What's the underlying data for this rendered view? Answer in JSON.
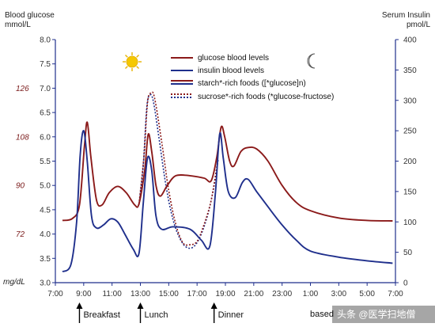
{
  "chart_data": {
    "type": "line",
    "left_axis": {
      "title_line1": "Blood glucose",
      "title_line2": "mmol/L",
      "ylim": [
        3.0,
        8.0
      ],
      "ticks": [
        "8.0",
        "7.5",
        "7.0",
        "6.5",
        "6.0",
        "5.5",
        "5.0",
        "4.5",
        "4.0",
        "3.5",
        "3.0"
      ]
    },
    "right_axis": {
      "title_line1": "Serum Insulin",
      "title_line2": "pmol/L",
      "ylim": [
        0,
        400
      ],
      "ticks": [
        "400",
        "350",
        "300",
        "250",
        "200",
        "150",
        "100",
        "50",
        "0"
      ]
    },
    "mg_axis": {
      "unit": "mg/dL",
      "labels": [
        {
          "text": "126",
          "mmol": 7.0
        },
        {
          "text": "108",
          "mmol": 6.0
        },
        {
          "text": "90",
          "mmol": 5.0
        },
        {
          "text": "72",
          "mmol": 4.0
        }
      ]
    },
    "x_axis": {
      "xlim": [
        7,
        31
      ],
      "ticks": [
        {
          "label": "7:00",
          "h": 7
        },
        {
          "label": "9:00",
          "h": 9
        },
        {
          "label": "11:00",
          "h": 11
        },
        {
          "label": "13:00",
          "h": 13
        },
        {
          "label": "15:00",
          "h": 15
        },
        {
          "label": "17:00",
          "h": 17
        },
        {
          "label": "19:00",
          "h": 19
        },
        {
          "label": "21:00",
          "h": 21
        },
        {
          "label": "23:00",
          "h": 23
        },
        {
          "label": "1:00",
          "h": 25
        },
        {
          "label": "3:00",
          "h": 27
        },
        {
          "label": "5:00",
          "h": 29
        },
        {
          "label": "7:00",
          "h": 31
        }
      ]
    },
    "meals": [
      {
        "label": "Breakfast",
        "h": 8.7
      },
      {
        "label": "Lunch",
        "h": 13.0
      },
      {
        "label": "Dinner",
        "h": 18.2
      }
    ],
    "footnote": "based",
    "watermark": "头条 @医学扫地僧",
    "legend": [
      {
        "text": "glucose blood levels"
      },
      {
        "text": "insulin blood levels"
      },
      {
        "text": "starch*-rich foods ([*glucose]n)"
      },
      {
        "text": "sucrose*-rich foods (*glucose-fructose)"
      }
    ],
    "series": [
      {
        "name": "glucose blood levels",
        "axis": "left",
        "color": "#8b1a1a",
        "points": [
          [
            7.5,
            4.28
          ],
          [
            8.2,
            4.32
          ],
          [
            8.7,
            4.6
          ],
          [
            9.05,
            5.8
          ],
          [
            9.25,
            6.3
          ],
          [
            9.5,
            5.6
          ],
          [
            9.9,
            4.7
          ],
          [
            10.3,
            4.6
          ],
          [
            10.8,
            4.85
          ],
          [
            11.4,
            4.98
          ],
          [
            12.0,
            4.85
          ],
          [
            12.6,
            4.6
          ],
          [
            12.9,
            4.62
          ],
          [
            13.3,
            5.3
          ],
          [
            13.55,
            6.05
          ],
          [
            13.8,
            5.7
          ],
          [
            14.1,
            5.0
          ],
          [
            14.4,
            4.78
          ],
          [
            14.9,
            5.0
          ],
          [
            15.5,
            5.2
          ],
          [
            16.5,
            5.2
          ],
          [
            17.5,
            5.15
          ],
          [
            18.0,
            5.1
          ],
          [
            18.4,
            5.6
          ],
          [
            18.7,
            6.2
          ],
          [
            18.95,
            6.0
          ],
          [
            19.3,
            5.5
          ],
          [
            19.6,
            5.4
          ],
          [
            20.1,
            5.7
          ],
          [
            20.6,
            5.78
          ],
          [
            21.2,
            5.75
          ],
          [
            22.0,
            5.5
          ],
          [
            23.0,
            5.0
          ],
          [
            24.0,
            4.65
          ],
          [
            25.0,
            4.48
          ],
          [
            27.0,
            4.33
          ],
          [
            29.0,
            4.28
          ],
          [
            30.8,
            4.27
          ]
        ]
      },
      {
        "name": "insulin blood levels",
        "axis": "right",
        "color": "#1f2f8c",
        "points": [
          [
            7.5,
            18
          ],
          [
            8.1,
            30
          ],
          [
            8.5,
            100
          ],
          [
            8.75,
            210
          ],
          [
            9.0,
            250
          ],
          [
            9.25,
            200
          ],
          [
            9.55,
            110
          ],
          [
            9.9,
            90
          ],
          [
            10.4,
            95
          ],
          [
            10.9,
            105
          ],
          [
            11.4,
            100
          ],
          [
            11.9,
            80
          ],
          [
            12.5,
            55
          ],
          [
            12.9,
            48
          ],
          [
            13.2,
            130
          ],
          [
            13.5,
            205
          ],
          [
            13.8,
            185
          ],
          [
            14.1,
            110
          ],
          [
            14.5,
            88
          ],
          [
            15.3,
            92
          ],
          [
            16.5,
            88
          ],
          [
            17.3,
            70
          ],
          [
            17.9,
            60
          ],
          [
            18.3,
            150
          ],
          [
            18.6,
            245
          ],
          [
            18.85,
            205
          ],
          [
            19.2,
            150
          ],
          [
            19.7,
            140
          ],
          [
            20.2,
            165
          ],
          [
            20.6,
            170
          ],
          [
            21.2,
            150
          ],
          [
            22.0,
            125
          ],
          [
            23.0,
            95
          ],
          [
            24.0,
            70
          ],
          [
            25.0,
            52
          ],
          [
            27.0,
            42
          ],
          [
            29.0,
            36
          ],
          [
            30.8,
            32
          ]
        ]
      },
      {
        "name": "starch*-rich foods ([*glucose]n)",
        "axis": "left",
        "color": "#1f2f8c",
        "dashed": true,
        "points": [
          [
            12.9,
            4.6
          ],
          [
            13.2,
            5.4
          ],
          [
            13.45,
            6.6
          ],
          [
            13.65,
            6.85
          ],
          [
            13.9,
            6.75
          ],
          [
            14.3,
            6.0
          ],
          [
            14.8,
            5.0
          ],
          [
            15.3,
            4.3
          ],
          [
            15.8,
            3.9
          ],
          [
            16.3,
            3.72
          ],
          [
            16.8,
            3.75
          ],
          [
            17.3,
            4.0
          ],
          [
            17.8,
            4.45
          ],
          [
            18.2,
            5.0
          ],
          [
            18.5,
            5.55
          ]
        ]
      },
      {
        "name": "sucrose*-rich foods (*glucose-fructose)",
        "axis": "left",
        "color": "#8b1a1a",
        "dashed": true,
        "points": [
          [
            12.9,
            4.62
          ],
          [
            13.25,
            5.6
          ],
          [
            13.5,
            6.7
          ],
          [
            13.75,
            6.9
          ],
          [
            14.0,
            6.8
          ],
          [
            14.5,
            5.9
          ],
          [
            15.0,
            4.9
          ],
          [
            15.5,
            4.2
          ],
          [
            16.0,
            3.82
          ],
          [
            16.5,
            3.78
          ],
          [
            17.0,
            3.85
          ],
          [
            17.5,
            4.2
          ],
          [
            18.0,
            4.7
          ],
          [
            18.4,
            5.4
          ]
        ]
      }
    ]
  }
}
